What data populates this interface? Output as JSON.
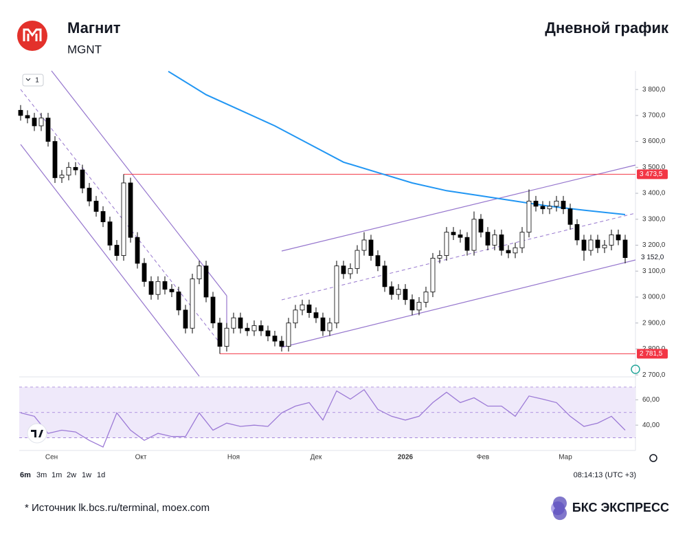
{
  "header": {
    "title": "Магнит",
    "ticker": "MGNT",
    "chart_kind": "Дневной график"
  },
  "chart_data": [
    {
      "type": "candlestick",
      "up_color": "#ffffff",
      "down_color": "#000000",
      "open": [
        3720,
        3700,
        3690,
        3660,
        3690,
        3600,
        3460,
        3470,
        3500,
        3490,
        3420,
        3370,
        3330,
        3290,
        3200,
        3160,
        3440,
        3230,
        3130,
        3060,
        3010,
        3060,
        3030,
        3020,
        2950,
        2880,
        3070,
        3120,
        3000,
        2900,
        2810,
        2880,
        2920,
        2880,
        2870,
        2890,
        2870,
        2850,
        2830,
        2810,
        2900,
        2950,
        2970,
        2940,
        2920,
        2870,
        2900,
        3120,
        3090,
        3110,
        3180,
        3220,
        3160,
        3120,
        3040,
        3010,
        3030,
        2990,
        2950,
        2980,
        3020,
        3150,
        3160,
        3250,
        3240,
        3230,
        3180,
        3300,
        3250,
        3200,
        3240,
        3180,
        3170,
        3190,
        3250,
        3370,
        3350,
        3340,
        3350,
        3370,
        3340,
        3280,
        3220,
        3180,
        3220,
        3190,
        3200,
        3240,
        3220
      ],
      "high": [
        3740,
        3720,
        3710,
        3710,
        3710,
        3620,
        3490,
        3520,
        3520,
        3510,
        3440,
        3390,
        3350,
        3310,
        3220,
        3473.5,
        3460,
        3250,
        3150,
        3080,
        3080,
        3080,
        3050,
        3040,
        2970,
        3090,
        3140,
        3140,
        3020,
        2920,
        2900,
        2940,
        2940,
        2900,
        2910,
        2910,
        2890,
        2870,
        2850,
        2920,
        2970,
        2990,
        2990,
        2960,
        2940,
        2920,
        3140,
        3140,
        3130,
        3200,
        3250,
        3240,
        3180,
        3140,
        3060,
        3050,
        3050,
        3010,
        3000,
        3040,
        3170,
        3180,
        3270,
        3270,
        3260,
        3250,
        3330,
        3320,
        3270,
        3260,
        3260,
        3200,
        3210,
        3270,
        3415,
        3390,
        3370,
        3370,
        3390,
        3390,
        3360,
        3300,
        3240,
        3240,
        3240,
        3220,
        3260,
        3260,
        3240
      ],
      "low": [
        3680,
        3670,
        3640,
        3640,
        3580,
        3440,
        3440,
        3450,
        3470,
        3400,
        3350,
        3310,
        3270,
        3180,
        3140,
        3140,
        3210,
        3110,
        3040,
        2990,
        2990,
        3010,
        3000,
        2930,
        2860,
        2860,
        3050,
        2980,
        2880,
        2781.5,
        2790,
        2860,
        2860,
        2850,
        2850,
        2850,
        2830,
        2810,
        2790,
        2790,
        2880,
        2930,
        2920,
        2900,
        2850,
        2850,
        2880,
        3070,
        3070,
        3090,
        3160,
        3140,
        3100,
        3020,
        2990,
        2990,
        2970,
        2930,
        2930,
        2960,
        3000,
        3130,
        3140,
        3220,
        3210,
        3160,
        3160,
        3230,
        3180,
        3180,
        3160,
        3150,
        3150,
        3170,
        3230,
        3330,
        3320,
        3320,
        3330,
        3320,
        3260,
        3200,
        3140,
        3160,
        3170,
        3170,
        3180,
        3200,
        3130
      ],
      "close": [
        3700,
        3690,
        3660,
        3690,
        3600,
        3460,
        3470,
        3500,
        3490,
        3420,
        3370,
        3330,
        3290,
        3200,
        3160,
        3440,
        3230,
        3130,
        3060,
        3010,
        3060,
        3030,
        3020,
        2950,
        2880,
        3070,
        3120,
        3000,
        2900,
        2810,
        2880,
        2920,
        2880,
        2870,
        2890,
        2870,
        2850,
        2830,
        2810,
        2900,
        2950,
        2970,
        2940,
        2920,
        2870,
        2900,
        3120,
        3090,
        3110,
        3180,
        3220,
        3160,
        3120,
        3040,
        3010,
        3030,
        2990,
        2950,
        2980,
        3020,
        3150,
        3160,
        3250,
        3240,
        3230,
        3180,
        3300,
        3250,
        3200,
        3240,
        3180,
        3170,
        3190,
        3250,
        3370,
        3350,
        3340,
        3350,
        3370,
        3340,
        3280,
        3220,
        3180,
        3220,
        3190,
        3200,
        3240,
        3220,
        3152
      ],
      "xlim": [
        -0.2,
        89.5
      ],
      "xticks": [
        {
          "value": 4.5,
          "label": "Сен"
        },
        {
          "value": 17.5,
          "label": "Окт"
        },
        {
          "value": 31,
          "label": "Ноя"
        },
        {
          "value": 43,
          "label": "Дек"
        },
        {
          "value": 56,
          "label": "2026"
        },
        {
          "value": 67.3,
          "label": "Фев"
        },
        {
          "value": 79.3,
          "label": "Мар"
        }
      ],
      "ylim": [
        2695,
        3872
      ],
      "yticks": [
        {
          "value": 2700,
          "label": "2 700,0"
        },
        {
          "value": 2800,
          "label": "2 800,0"
        },
        {
          "value": 2900,
          "label": "2 900,0"
        },
        {
          "value": 3000,
          "label": "3 000,0"
        },
        {
          "value": 3100,
          "label": "3 100,0"
        },
        {
          "value": 3200,
          "label": "3 200,0"
        },
        {
          "value": 3300,
          "label": "3 300,0"
        },
        {
          "value": 3400,
          "label": "3 400,0"
        },
        {
          "value": 3500,
          "label": "3 500,0"
        },
        {
          "value": 3600,
          "label": "3 600,0"
        },
        {
          "value": 3700,
          "label": "3 700,0"
        },
        {
          "value": 3800,
          "label": "3 800,0"
        }
      ],
      "levels": [
        {
          "value": 3473.5,
          "label": "3 473,5",
          "color": "#f23645"
        },
        {
          "value": 2781.5,
          "label": "2 781,5",
          "color": "#f23645"
        }
      ],
      "last_price": {
        "value": 3152,
        "label": "3 152,0",
        "color": "#131722"
      },
      "moving_average": {
        "color": "#2196f3",
        "x": [
          21.5,
          27,
          32,
          37,
          42,
          47,
          52,
          57,
          62,
          67,
          72,
          77,
          82,
          88
        ],
        "values": [
          3870,
          3780,
          3720,
          3660,
          3590,
          3520,
          3480,
          3440,
          3410,
          3390,
          3370,
          3350,
          3335,
          3318
        ]
      }
    },
    {
      "type": "line",
      "color": "#9c7ad6",
      "band_color": "#efe9fa",
      "x": [
        0,
        2,
        4,
        6,
        8,
        10,
        12,
        14,
        16,
        18,
        20,
        22,
        24,
        26,
        28,
        30,
        32,
        34,
        36,
        38,
        40,
        42,
        44,
        46,
        48,
        50,
        52,
        54,
        56,
        58,
        60,
        62,
        64,
        66,
        68,
        70,
        72,
        74,
        76,
        78,
        80,
        82,
        84,
        86,
        88
      ],
      "values": [
        49.7,
        47,
        33.5,
        36,
        34.6,
        28,
        22.7,
        49.7,
        36,
        28,
        33.5,
        31,
        31,
        49.7,
        36,
        41.6,
        39,
        40,
        39,
        49.7,
        55,
        57.8,
        44,
        67,
        60.5,
        68,
        52.4,
        47,
        44,
        47,
        57.8,
        66,
        57.8,
        61.6,
        55,
        55,
        47,
        63,
        60.5,
        57.8,
        47,
        39,
        41.6,
        47,
        36
      ],
      "xlim": [
        -0.2,
        89.5
      ],
      "ylim": [
        20,
        77
      ],
      "yticks": [
        {
          "value": 40,
          "label": "40,00"
        },
        {
          "value": 60,
          "label": "60,00"
        }
      ],
      "levels": [
        30,
        50,
        70
      ]
    }
  ],
  "toolbar": {
    "pane_count": "1",
    "timeframes": [
      "6m",
      "3m",
      "1m",
      "2w",
      "1w",
      "1d"
    ],
    "clock": "08:14:13 (UTC +3)"
  },
  "footer": {
    "source": "*  Источник lk.bcs.ru/terminal, moex.com",
    "brand": "БКС ЭКСПРЕСС"
  }
}
